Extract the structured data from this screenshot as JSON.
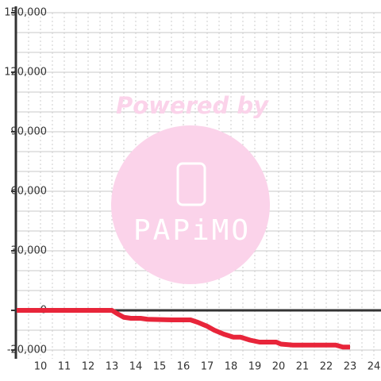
{
  "chart_data": {
    "type": "line",
    "watermark": {
      "text": "Powered by",
      "logo": "PAPiMO"
    },
    "x": [
      9,
      13,
      13.2,
      13.5,
      13.8,
      14.2,
      14.5,
      15.5,
      16.3,
      16.6,
      17,
      17.3,
      17.7,
      18.1,
      18.4,
      18.8,
      19.2,
      19.9,
      20.1,
      20.6,
      21.5,
      22.4,
      22.7,
      23
    ],
    "series": [
      {
        "color": "#e8253a",
        "values": [
          0,
          0,
          -1500,
          -3500,
          -4000,
          -4000,
          -4500,
          -4800,
          -4800,
          -6000,
          -8000,
          -10000,
          -12000,
          -13500,
          -13500,
          -15000,
          -16000,
          -16000,
          -17000,
          -17500,
          -17500,
          -17500,
          -18500,
          -18500
        ]
      }
    ],
    "xlim": [
      9,
      24.25
    ],
    "ylim": [
      -20000,
      150000
    ],
    "xticks": [
      10,
      11,
      12,
      13,
      14,
      15,
      16,
      17,
      18,
      19,
      20,
      21,
      22,
      23,
      24
    ],
    "yticks": [
      {
        "value": 150000,
        "label": "150,000"
      },
      {
        "value": 120000,
        "label": "120,000"
      },
      {
        "value": 90000,
        "label": "90,000"
      },
      {
        "value": 60000,
        "label": "60,000"
      },
      {
        "value": 30000,
        "label": "30,000"
      },
      0,
      {
        "value": -20000,
        "label": "-20,000"
      }
    ],
    "minor_yticks": [
      -10000,
      10000,
      20000,
      40000,
      50000,
      70000,
      80000,
      100000,
      110000,
      130000,
      140000
    ],
    "minor_xticks": [
      9.5,
      10.5,
      11.5,
      12.5,
      13.5,
      14.5,
      15.5,
      16.5,
      17.5,
      18.5,
      19.5,
      20.5,
      21.5,
      22.5,
      23.5
    ],
    "grid": true
  }
}
